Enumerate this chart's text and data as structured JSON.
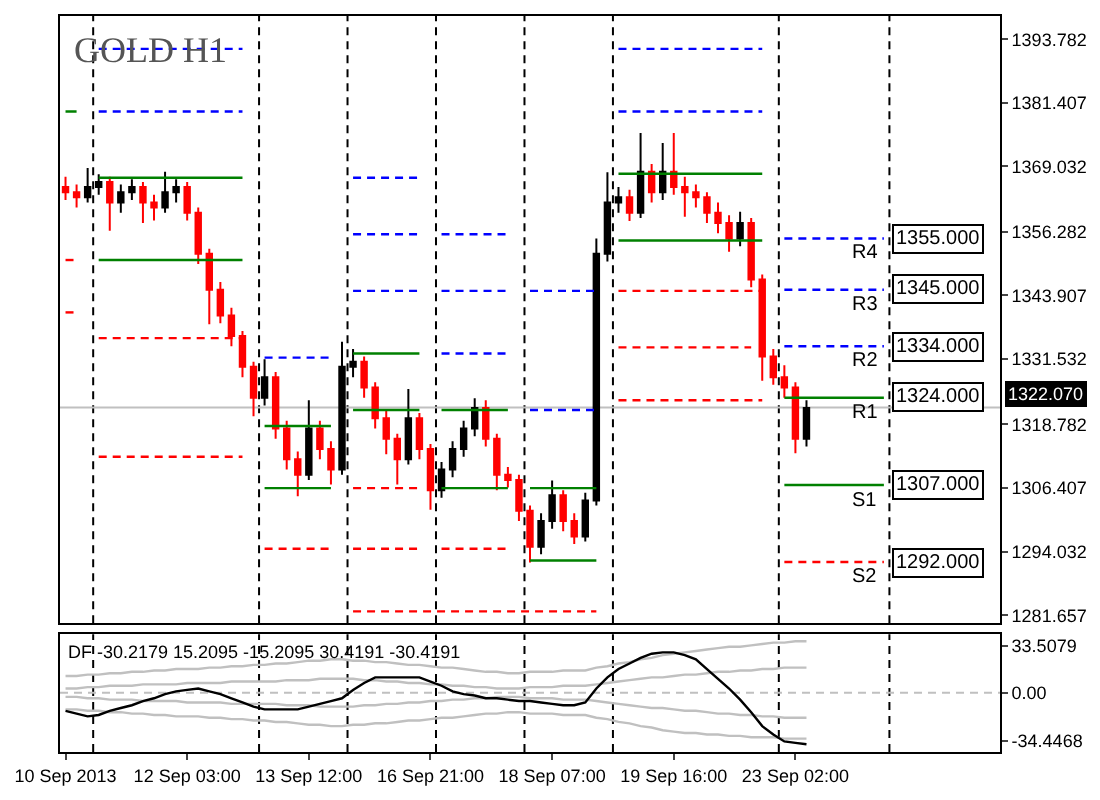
{
  "chart_data": [
    {
      "type": "candlestick",
      "title": "GOLD H1",
      "categories": [
        null,
        null,
        null,
        null,
        null,
        null,
        null,
        null,
        null,
        null,
        null,
        null,
        null,
        null,
        null,
        null,
        null,
        null,
        null,
        null,
        null,
        null,
        null,
        null,
        null,
        null,
        null,
        null,
        null,
        null,
        null,
        null,
        null,
        null,
        null,
        null,
        null,
        null,
        null,
        null,
        null,
        null,
        null,
        null,
        null,
        null,
        null,
        null,
        null,
        null,
        null,
        null,
        null,
        null,
        null,
        null,
        null,
        null,
        null,
        null,
        null,
        null,
        null,
        null,
        null,
        null,
        null,
        null,
        null,
        null,
        null,
        null,
        null,
        null,
        null,
        null,
        null,
        null,
        null,
        null,
        null,
        null,
        null,
        null,
        null
      ],
      "ohlc": [
        [
          1365,
          1367,
          1362.5,
          1364
        ],
        [
          1364,
          1365.5,
          1361,
          1363
        ],
        [
          1363,
          1368.7,
          1362,
          1365
        ],
        [
          1365,
          1367.5,
          1363.5,
          1366
        ],
        [
          1366,
          1367,
          1356.5,
          1362
        ],
        [
          1362,
          1365.5,
          1360,
          1364
        ],
        [
          1364,
          1366.5,
          1362.5,
          1365
        ],
        [
          1365,
          1366,
          1358,
          1362
        ],
        [
          1362,
          1363.5,
          1358.5,
          1361
        ],
        [
          1361,
          1368,
          1360,
          1364
        ],
        [
          1364,
          1366.5,
          1362,
          1365
        ],
        [
          1365,
          1366,
          1358.5,
          1360
        ],
        [
          1360,
          1361,
          1350,
          1352
        ],
        [
          1352,
          1353,
          1338.3,
          1345
        ],
        [
          1345,
          1346.5,
          1338.5,
          1340
        ],
        [
          1340,
          1341.5,
          1334,
          1336
        ],
        [
          1336,
          1337,
          1328,
          1330
        ],
        [
          1330,
          1331,
          1320.4,
          1324
        ],
        [
          1324,
          1331.5,
          1322.5,
          1328
        ],
        [
          1328,
          1329,
          1316,
          1318
        ],
        [
          1318,
          1319.5,
          1310,
          1312
        ],
        [
          1312,
          1313.5,
          1304.8,
          1309
        ],
        [
          1309,
          1323.5,
          1308,
          1318
        ],
        [
          1318,
          1319.5,
          1312,
          1314
        ],
        [
          1314,
          1315.5,
          1307.1,
          1310
        ],
        [
          1310,
          1334.9,
          1309,
          1330
        ],
        [
          1330,
          1333.5,
          1328,
          1331
        ],
        [
          1331,
          1332,
          1324,
          1326
        ],
        [
          1326,
          1327,
          1318,
          1320
        ],
        [
          1320,
          1321.5,
          1313,
          1316
        ],
        [
          1316,
          1317,
          1307.1,
          1312
        ],
        [
          1312,
          1325.7,
          1311,
          1320
        ],
        [
          1320,
          1321,
          1312,
          1314
        ],
        [
          1314,
          1315,
          1302.2,
          1306
        ],
        [
          1306,
          1311.5,
          1304.5,
          1310
        ],
        [
          1310,
          1315.5,
          1308.5,
          1314
        ],
        [
          1314,
          1319.5,
          1312.5,
          1318
        ],
        [
          1318,
          1323.9,
          1316.5,
          1322
        ],
        [
          1322,
          1323.5,
          1314.5,
          1316
        ],
        [
          1316,
          1317,
          1306,
          1309
        ],
        [
          1309,
          1310.5,
          1306.5,
          1308
        ],
        [
          1308,
          1309,
          1300,
          1302
        ],
        [
          1302,
          1303,
          1291.9,
          1295
        ],
        [
          1295,
          1301.5,
          1293.5,
          1300
        ],
        [
          1300,
          1307.9,
          1298.5,
          1305
        ],
        [
          1305,
          1306,
          1298,
          1300
        ],
        [
          1300,
          1301.5,
          1295.5,
          1297
        ],
        [
          1297,
          1305.5,
          1296,
          1304
        ],
        [
          1304,
          1355,
          1303,
          1352
        ],
        [
          1352,
          1367.9,
          1350.5,
          1362
        ],
        [
          1362,
          1365,
          1360,
          1363
        ],
        [
          1363,
          1364.5,
          1358.4,
          1360
        ],
        [
          1360,
          1375.5,
          1359,
          1368
        ],
        [
          1368,
          1369.5,
          1362,
          1364
        ],
        [
          1364,
          1373.6,
          1362.5,
          1368
        ],
        [
          1368,
          1375.5,
          1363.5,
          1365
        ],
        [
          1365,
          1367,
          1359.2,
          1364
        ],
        [
          1364,
          1365.5,
          1361,
          1363
        ],
        [
          1363,
          1364,
          1358,
          1360
        ],
        [
          1360,
          1362,
          1356,
          1358
        ],
        [
          1358,
          1359.5,
          1352.4,
          1355
        ],
        [
          1355,
          1360.2,
          1353.5,
          1358
        ],
        [
          1358,
          1359,
          1345.5,
          1347
        ],
        [
          1347,
          1348,
          1327.3,
          1332
        ],
        [
          1332,
          1333.5,
          1326.5,
          1328
        ],
        [
          1328,
          1330.3,
          1324,
          1326
        ],
        [
          1326,
          1327,
          1313.2,
          1316
        ],
        [
          1316,
          1323.5,
          1314.5,
          1322
        ],
        null,
        null,
        null,
        null,
        null,
        null,
        null,
        null,
        null,
        null,
        null,
        null,
        null,
        null,
        null,
        null,
        null
      ],
      "colors": [
        "#ff0000",
        "#ff0000",
        "#000000",
        "#000000",
        "#ff0000",
        "#000000",
        "#000000",
        "#ff0000",
        "#ff0000",
        "#000000",
        "#000000",
        "#ff0000",
        "#ff0000",
        "#ff0000",
        "#ff0000",
        "#ff0000",
        "#ff0000",
        "#ff0000",
        "#000000",
        "#ff0000",
        "#ff0000",
        "#ff0000",
        "#000000",
        "#ff0000",
        "#ff0000",
        "#000000",
        "#000000",
        "#ff0000",
        "#ff0000",
        "#ff0000",
        "#ff0000",
        "#000000",
        "#ff0000",
        "#ff0000",
        "#000000",
        "#000000",
        "#000000",
        "#000000",
        "#ff0000",
        "#ff0000",
        "#ff0000",
        "#ff0000",
        "#ff0000",
        "#000000",
        "#000000",
        "#ff0000",
        "#ff0000",
        "#000000",
        "#000000",
        "#000000",
        "#000000",
        "#ff0000",
        "#000000",
        "#ff0000",
        "#000000",
        "#ff0000",
        "#ff0000",
        "#ff0000",
        "#ff0000",
        "#ff0000",
        "#ff0000",
        "#000000",
        "#ff0000",
        "#ff0000",
        "#ff0000",
        "#ff0000",
        "#ff0000",
        "#000000",
        null,
        null,
        null,
        null,
        null,
        null,
        null,
        null,
        null,
        null,
        null,
        null,
        null,
        null,
        null,
        null,
        null
      ],
      "series": [
        {
          "type": "line",
          "color": "#008000",
          "line_style": "solid",
          "values": [
            1379.7,
            1379.7,
            null,
            1366.8,
            1366.8,
            1366.8,
            1366.8,
            1366.8,
            1366.8,
            1366.8,
            1366.8,
            1366.8,
            1366.8,
            1366.8,
            1366.8,
            1366.8,
            1366.8,
            null,
            1318.5,
            1318.5,
            1318.5,
            1318.5,
            1318.5,
            1318.5,
            1318.5,
            null,
            1332.6,
            1332.6,
            1332.6,
            1332.6,
            1332.6,
            1332.6,
            1332.6,
            null,
            1321.6,
            1321.6,
            1321.6,
            1321.6,
            1321.6,
            1321.6,
            1321.6,
            null,
            1306.4,
            1306.4,
            1306.4,
            1306.4,
            1306.4,
            1306.4,
            1306.4,
            null,
            1367.6,
            1367.6,
            1367.6,
            1367.6,
            1367.6,
            1367.6,
            1367.6,
            1367.6,
            1367.6,
            1367.6,
            1367.6,
            1367.6,
            1367.6,
            1367.6,
            null,
            1324,
            1324,
            1324,
            1324,
            1324,
            1324,
            1324,
            1324,
            1324,
            1324,
            null,
            null,
            null,
            null,
            null,
            null,
            null,
            null,
            null,
            null
          ]
        },
        {
          "type": "line",
          "color": "#008000",
          "line_style": "solid",
          "values": [
            null,
            null,
            null,
            1350.8,
            1350.8,
            1350.8,
            1350.8,
            1350.8,
            1350.8,
            1350.8,
            1350.8,
            1350.8,
            1350.8,
            1350.8,
            1350.8,
            1350.8,
            1350.8,
            null,
            1306.4,
            1306.4,
            1306.4,
            1306.4,
            1306.4,
            1306.4,
            1306.4,
            null,
            1321.6,
            1321.6,
            1321.6,
            1321.6,
            1321.6,
            1321.6,
            1321.6,
            null,
            1306.4,
            1306.4,
            1306.4,
            1306.4,
            1306.4,
            1306.4,
            1306.4,
            null,
            1292.3,
            1292.3,
            1292.3,
            1292.3,
            1292.3,
            1292.3,
            1292.3,
            null,
            1354.6,
            1354.6,
            1354.6,
            1354.6,
            1354.6,
            1354.6,
            1354.6,
            1354.6,
            1354.6,
            1354.6,
            1354.6,
            1354.6,
            1354.6,
            1354.6,
            null,
            1307,
            1307,
            1307,
            1307,
            1307,
            1307,
            1307,
            1307,
            1307,
            1307,
            null,
            null,
            null,
            null,
            null,
            null,
            null,
            null,
            null,
            null
          ]
        },
        {
          "type": "line",
          "color": "#ff0000",
          "line_style": "dashed",
          "values": [
            1350.8,
            1350.8,
            null,
            1335.6,
            1335.6,
            1335.6,
            1335.6,
            1335.6,
            1335.6,
            1335.6,
            1335.6,
            1335.6,
            1335.6,
            1335.6,
            1335.6,
            1335.6,
            1335.6,
            null,
            1294.6,
            1294.6,
            1294.6,
            1294.6,
            1294.6,
            1294.6,
            1294.6,
            null,
            1306.4,
            1306.4,
            1306.4,
            1306.4,
            1306.4,
            1306.4,
            1306.4,
            null,
            1294.6,
            1294.6,
            1294.6,
            1294.6,
            1294.6,
            1294.6,
            1294.6,
            null,
            null,
            null,
            null,
            null,
            null,
            null,
            null,
            null,
            1344.8,
            1344.8,
            1344.8,
            1344.8,
            1344.8,
            1344.8,
            1344.8,
            1344.8,
            1344.8,
            1344.8,
            1344.8,
            1344.8,
            1344.8,
            1344.8,
            null,
            1292,
            1292,
            1292,
            1292,
            1292,
            1292,
            1292,
            1292,
            1292,
            1292,
            null,
            null,
            null,
            null,
            null,
            null,
            null,
            null,
            null,
            null
          ]
        },
        {
          "type": "line",
          "color": "#ff0000",
          "line_style": "dashed",
          "values": [
            1340.6,
            1340.6,
            null,
            1312.5,
            1312.5,
            1312.5,
            1312.5,
            1312.5,
            1312.5,
            1312.5,
            1312.5,
            1312.5,
            1312.5,
            1312.5,
            1312.5,
            1312.5,
            1312.5,
            null,
            null,
            null,
            null,
            null,
            null,
            null,
            null,
            null,
            1294.6,
            1294.6,
            1294.6,
            1294.6,
            1294.6,
            1294.6,
            1294.6,
            null,
            null,
            null,
            null,
            null,
            null,
            null,
            null,
            null,
            null,
            null,
            null,
            null,
            null,
            null,
            null,
            null,
            1333.8,
            1333.8,
            1333.8,
            1333.8,
            1333.8,
            1333.8,
            1333.8,
            1333.8,
            1333.8,
            1333.8,
            1333.8,
            1333.8,
            1333.8,
            null,
            null,
            null,
            null,
            null,
            null,
            null,
            null,
            null,
            null,
            null,
            null,
            null,
            null,
            null,
            null,
            null,
            null,
            null,
            null,
            null,
            null
          ]
        },
        {
          "type": "line",
          "color": "#ff0000",
          "line_style": "dashed",
          "values": [
            null,
            null,
            null,
            null,
            null,
            null,
            null,
            null,
            null,
            null,
            null,
            null,
            null,
            null,
            null,
            null,
            null,
            null,
            null,
            null,
            null,
            null,
            null,
            null,
            null,
            null,
            1282.4,
            1282.4,
            1282.4,
            1282.4,
            1282.4,
            1282.4,
            1282.4,
            1282.4,
            1282.4,
            1282.4,
            1282.4,
            1282.4,
            1282.4,
            1282.4,
            1282.4,
            1282.4,
            1282.4,
            1282.4,
            1282.4,
            1282.4,
            1282.4,
            1282.4,
            1282.4,
            null,
            1323.5,
            1323.5,
            1323.5,
            1323.5,
            1323.5,
            1323.5,
            1323.5,
            1323.5,
            1323.5,
            1323.5,
            1323.5,
            1323.5,
            1323.5,
            1323.5,
            null,
            null,
            null,
            null,
            null,
            null,
            null,
            null,
            null,
            null,
            null,
            null,
            null,
            null,
            null,
            null,
            null,
            null,
            null,
            null,
            null
          ]
        },
        {
          "type": "line",
          "color": "#0000ff",
          "line_style": "dashed",
          "values": [
            null,
            null,
            null,
            1391.9,
            1391.9,
            1391.9,
            1391.9,
            1391.9,
            1391.9,
            1391.9,
            1391.9,
            1391.9,
            1391.9,
            1391.9,
            1391.9,
            1391.9,
            1391.9,
            null,
            1331.8,
            1331.8,
            1331.8,
            1331.8,
            1331.8,
            1331.8,
            1331.8,
            null,
            1366.8,
            1366.8,
            1366.8,
            1366.8,
            1366.8,
            1366.8,
            1366.8,
            null,
            1355.8,
            1355.8,
            1355.8,
            1355.8,
            1355.8,
            1355.8,
            1355.8,
            null,
            1344.8,
            1344.8,
            1344.8,
            1344.8,
            1344.8,
            1344.8,
            1344.8,
            null,
            1391.9,
            1391.9,
            1391.9,
            1391.9,
            1391.9,
            1391.9,
            1391.9,
            1391.9,
            1391.9,
            1391.9,
            1391.9,
            1391.9,
            1391.9,
            1391.9,
            null,
            1355,
            1355,
            1355,
            1355,
            1355,
            1355,
            1355,
            1355,
            1355,
            1355,
            null,
            null,
            null,
            null,
            null,
            null,
            null,
            null,
            null,
            null
          ]
        },
        {
          "type": "line",
          "color": "#0000ff",
          "line_style": "dashed",
          "values": [
            null,
            null,
            null,
            1379.7,
            1379.7,
            1379.7,
            1379.7,
            1379.7,
            1379.7,
            1379.7,
            1379.7,
            1379.7,
            1379.7,
            1379.7,
            1379.7,
            1379.7,
            1379.7,
            null,
            null,
            null,
            null,
            null,
            null,
            null,
            null,
            null,
            1355.8,
            1355.8,
            1355.8,
            1355.8,
            1355.8,
            1355.8,
            1355.8,
            null,
            1344.8,
            1344.8,
            1344.8,
            1344.8,
            1344.8,
            1344.8,
            1344.8,
            null,
            1321.6,
            1321.6,
            1321.6,
            1321.6,
            1321.6,
            1321.6,
            1321.6,
            null,
            1379.7,
            1379.7,
            1379.7,
            1379.7,
            1379.7,
            1379.7,
            1379.7,
            1379.7,
            1379.7,
            1379.7,
            1379.7,
            1379.7,
            1379.7,
            1379.7,
            null,
            1345,
            1345,
            1345,
            1345,
            1345,
            1345,
            1345,
            1345,
            1345,
            1345,
            null,
            null,
            null,
            null,
            null,
            null,
            null,
            null,
            null,
            null
          ]
        },
        {
          "type": "line",
          "color": "#0000ff",
          "line_style": "dashed",
          "values": [
            null,
            null,
            null,
            null,
            null,
            null,
            null,
            null,
            null,
            null,
            null,
            null,
            null,
            null,
            null,
            null,
            null,
            null,
            null,
            null,
            null,
            null,
            null,
            null,
            null,
            null,
            1344.8,
            1344.8,
            1344.8,
            1344.8,
            1344.8,
            1344.8,
            1344.8,
            null,
            1332.6,
            1332.6,
            1332.6,
            1332.6,
            1332.6,
            1332.6,
            1332.6,
            null,
            null,
            null,
            null,
            null,
            null,
            null,
            null,
            null,
            null,
            null,
            null,
            null,
            null,
            null,
            null,
            null,
            null,
            null,
            null,
            null,
            null,
            null,
            null,
            1334,
            1334,
            1334,
            1334,
            1334,
            1334,
            1334,
            1334,
            1334,
            1334,
            null,
            null,
            null,
            null,
            null,
            null,
            null,
            null,
            null,
            null
          ]
        }
      ],
      "ylim": [
        1280.1,
        1398.3
      ],
      "yticks": [
        1393.782,
        1381.407,
        1369.032,
        1356.282,
        1343.907,
        1331.532,
        1318.782,
        1306.407,
        1294.032,
        1281.657
      ],
      "tick_labels": "y",
      "grid": false,
      "ref_lines": [
        {
          "axis": "y",
          "value": 1322.07,
          "label": "1322.070",
          "color": "#c0c0c0",
          "line_style": "solid"
        }
      ],
      "annotations": [
        {
          "text": "R4",
          "y": 1355
        },
        "1355.000",
        {
          "text": "R3",
          "y": 1345
        },
        "1345.000",
        {
          "text": "R2",
          "y": 1334
        },
        "1334.000",
        {
          "text": "R1",
          "y": 1324
        },
        "1324.000",
        {
          "text": "S1",
          "y": 1307
        },
        "1307.000",
        {
          "text": "S2",
          "y": 1292
        },
        "1292.000"
      ]
    },
    {
      "type": "line",
      "title": "DF -30.2179 15.2095 -15.2095 30.4191 -30.4191",
      "categories": [
        "10 Sep 2013",
        null,
        null,
        null,
        null,
        null,
        null,
        null,
        null,
        null,
        null,
        "12 Sep 03:00",
        null,
        null,
        null,
        null,
        null,
        null,
        null,
        null,
        null,
        null,
        "13 Sep 12:00",
        null,
        null,
        null,
        null,
        null,
        null,
        null,
        null,
        null,
        null,
        "16 Sep 21:00",
        null,
        null,
        null,
        null,
        null,
        null,
        null,
        null,
        null,
        null,
        "18 Sep 07:00",
        null,
        null,
        null,
        null,
        null,
        null,
        null,
        null,
        null,
        null,
        "19 Sep 16:00",
        null,
        null,
        null,
        null,
        null,
        null,
        null,
        null,
        null,
        null,
        "23 Sep 02:00",
        null,
        null,
        null,
        null,
        null,
        null,
        null,
        null,
        null,
        null,
        null,
        null,
        null,
        null,
        null,
        null,
        null,
        null
      ],
      "series": [
        {
          "color": "#c0c0c0",
          "values": [
            12,
            12,
            13,
            13,
            14,
            14,
            15,
            15,
            16,
            16,
            17,
            17,
            17,
            18,
            18,
            19,
            19,
            20,
            20,
            21,
            21,
            22,
            23,
            23,
            24,
            24,
            23,
            23,
            22,
            22,
            21,
            20,
            20,
            19,
            18,
            18,
            17,
            16,
            15,
            15,
            14,
            14,
            15,
            15,
            15,
            16,
            16,
            16,
            18,
            19,
            21,
            22,
            24,
            25,
            27,
            28,
            29,
            30,
            31,
            32,
            33,
            33,
            34,
            35,
            36,
            36,
            37,
            37,
            null,
            null,
            null,
            null,
            null,
            null,
            null,
            null,
            null,
            null,
            null,
            null,
            null,
            null,
            null,
            null,
            null
          ]
        },
        {
          "color": "#c0c0c0",
          "values": [
            3,
            3,
            4,
            4,
            5,
            5,
            5,
            6,
            6,
            6,
            6,
            7,
            7,
            7,
            7,
            8,
            8,
            8,
            8,
            8,
            9,
            9,
            9,
            10,
            10,
            10,
            10,
            9,
            9,
            8,
            8,
            7,
            7,
            6,
            6,
            5,
            5,
            4,
            4,
            3,
            3,
            3,
            4,
            4,
            4,
            5,
            5,
            5,
            6,
            7,
            8,
            9,
            10,
            11,
            11,
            12,
            13,
            13,
            14,
            15,
            15,
            16,
            16,
            17,
            17,
            18,
            18,
            18,
            null,
            null,
            null,
            null,
            null,
            null,
            null,
            null,
            null,
            null,
            null,
            null,
            null,
            null,
            null,
            null,
            null
          ]
        },
        {
          "color": "#c0c0c0",
          "values": [
            -3,
            -3,
            -4,
            -4,
            -5,
            -5,
            -5,
            -6,
            -6,
            -6,
            -6,
            -7,
            -7,
            -7,
            -7,
            -8,
            -8,
            -8,
            -8,
            -8,
            -9,
            -9,
            -9,
            -10,
            -10,
            -10,
            -10,
            -9,
            -9,
            -8,
            -8,
            -7,
            -7,
            -6,
            -6,
            -5,
            -5,
            -4,
            -4,
            -3,
            -3,
            -3,
            -4,
            -4,
            -4,
            -5,
            -5,
            -5,
            -6,
            -7,
            -8,
            -9,
            -10,
            -11,
            -11,
            -12,
            -13,
            -13,
            -14,
            -15,
            -15,
            -16,
            -16,
            -17,
            -17,
            -18,
            -18,
            -18,
            null,
            null,
            null,
            null,
            null,
            null,
            null,
            null,
            null,
            null,
            null,
            null,
            null,
            null,
            null,
            null,
            null
          ]
        },
        {
          "color": "#c0c0c0",
          "values": [
            -12,
            -12,
            -13,
            -13,
            -14,
            -14,
            -15,
            -15,
            -16,
            -16,
            -17,
            -17,
            -17,
            -18,
            -18,
            -19,
            -19,
            -20,
            -20,
            -21,
            -21,
            -22,
            -23,
            -23,
            -24,
            -24,
            -23,
            -23,
            -22,
            -22,
            -21,
            -20,
            -20,
            -19,
            -18,
            -18,
            -17,
            -16,
            -15,
            -15,
            -14,
            -14,
            -15,
            -15,
            -15,
            -16,
            -16,
            -16,
            -18,
            -19,
            -21,
            -22,
            -24,
            -25,
            -27,
            -28,
            -29,
            -29,
            -30,
            -30,
            -31,
            -31,
            -32,
            -32,
            -32,
            -33,
            -33,
            -33,
            null,
            null,
            null,
            null,
            null,
            null,
            null,
            null,
            null,
            null,
            null,
            null,
            null,
            null,
            null,
            null,
            null
          ]
        },
        {
          "color": "#000000",
          "values": [
            -13,
            -15,
            -17,
            -16,
            -13,
            -11,
            -9,
            -6,
            -4,
            -1,
            1,
            2,
            3,
            1,
            -1,
            -4,
            -7,
            -10,
            -12,
            -12,
            -12,
            -12,
            -10,
            -8,
            -6,
            -4,
            2,
            7,
            11,
            11,
            11,
            11,
            11,
            8,
            5,
            1,
            -1,
            -2,
            -4,
            -4,
            -5,
            -6,
            -6,
            -7,
            -8,
            -9,
            -9,
            -7,
            3,
            11,
            17,
            21,
            25,
            28,
            29,
            29,
            27,
            24,
            17,
            10,
            3,
            -5,
            -14,
            -24,
            -30,
            -35,
            -36,
            -37,
            null,
            null,
            null,
            null,
            null,
            null,
            null,
            null,
            null,
            null,
            null,
            null,
            null,
            null,
            null,
            null,
            null
          ]
        }
      ],
      "line_style": "solid",
      "ylim": [
        -42.6,
        42
      ],
      "yticks": [
        33.5079,
        {
          "value": 0,
          "label": "0.00"
        },
        -34.4468
      ],
      "grid": false,
      "ref_lines": [
        {
          "axis": "y",
          "value": 0,
          "color": "#c0c0c0",
          "line_style": "dashed"
        }
      ]
    }
  ]
}
